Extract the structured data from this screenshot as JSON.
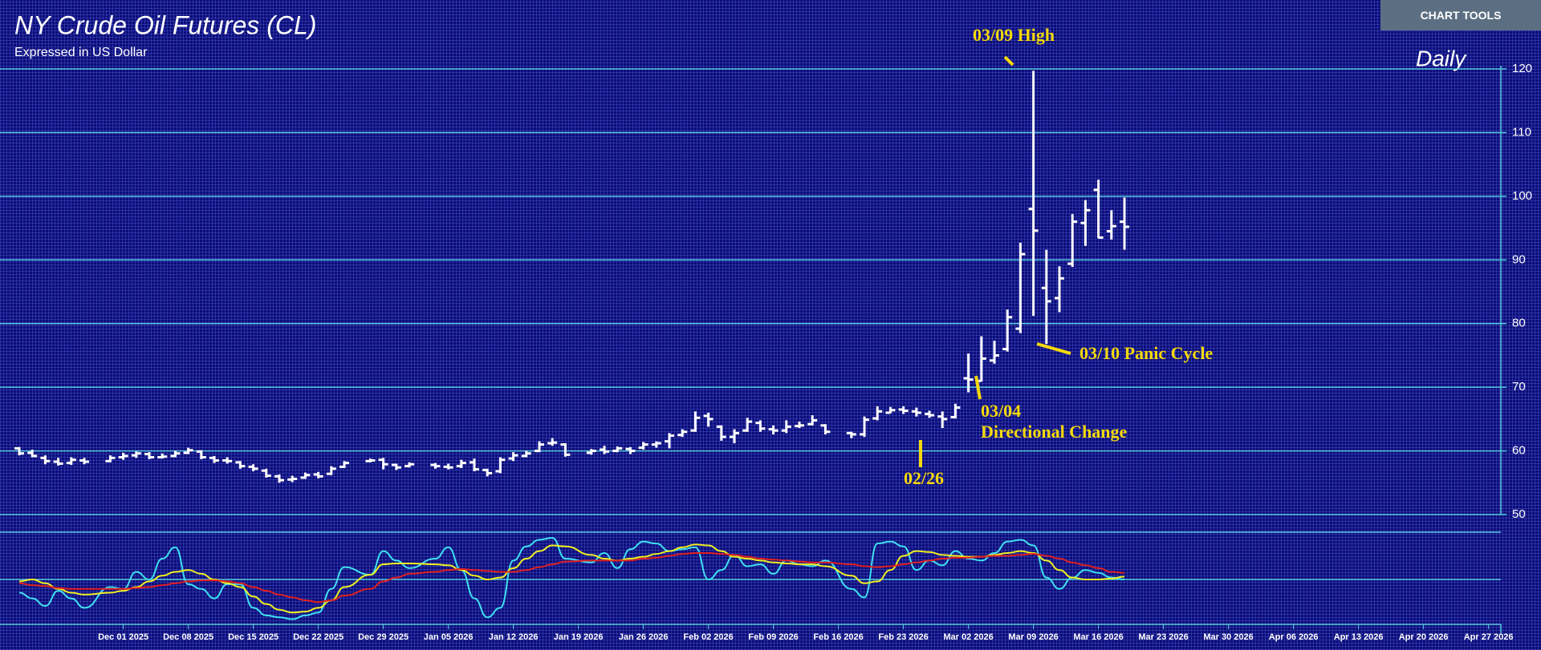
{
  "chart_data": {
    "type": "ohlc",
    "title": "NY Crude Oil Futures (CL)",
    "subtitle": "Expressed in US Dollar",
    "period": "Daily",
    "button": "CHART TOOLS",
    "color": "#ffffff",
    "grid_color": "#56c8dc",
    "grid": true,
    "ylim": [
      50,
      120
    ],
    "yticks": [
      50,
      60,
      70,
      80,
      90,
      100,
      110,
      120
    ],
    "xticks": [
      {
        "value": "2025-12-01",
        "label": "Dec 01 2025"
      },
      {
        "value": "2025-12-08",
        "label": "Dec 08 2025"
      },
      {
        "value": "2025-12-15",
        "label": "Dec 15 2025"
      },
      {
        "value": "2025-12-22",
        "label": "Dec 22 2025"
      },
      {
        "value": "2025-12-29",
        "label": "Dec 29 2025"
      },
      {
        "value": "2026-01-05",
        "label": "Jan 05 2026"
      },
      {
        "value": "2026-01-12",
        "label": "Jan 12 2026"
      },
      {
        "value": "2026-01-19",
        "label": "Jan 19 2026"
      },
      {
        "value": "2026-01-26",
        "label": "Jan 26 2026"
      },
      {
        "value": "2026-02-02",
        "label": "Feb 02 2026"
      },
      {
        "value": "2026-02-09",
        "label": "Feb 09 2026"
      },
      {
        "value": "2026-02-16",
        "label": "Feb 16 2026"
      },
      {
        "value": "2026-02-23",
        "label": "Feb 23 2026"
      },
      {
        "value": "2026-03-02",
        "label": "Mar 02 2026"
      },
      {
        "value": "2026-03-09",
        "label": "Mar 09 2026"
      },
      {
        "value": "2026-03-16",
        "label": "Mar 16 2026"
      },
      {
        "value": "2026-03-23",
        "label": "Mar 23 2026"
      },
      {
        "value": "2026-03-30",
        "label": "Mar 30 2026"
      },
      {
        "value": "2026-04-06",
        "label": "Apr 06 2026"
      },
      {
        "value": "2026-04-13",
        "label": "Apr 13 2026"
      },
      {
        "value": "2026-04-20",
        "label": "Apr 20 2026"
      },
      {
        "value": "2026-04-27",
        "label": "Apr 27 2026"
      }
    ],
    "x": [
      "2025-11-19",
      "2025-11-20",
      "2025-11-21",
      "2025-11-24",
      "2025-11-25",
      "2025-11-26",
      "2025-11-28",
      "2025-12-01",
      "2025-12-02",
      "2025-12-03",
      "2025-12-04",
      "2025-12-05",
      "2025-12-08",
      "2025-12-09",
      "2025-12-10",
      "2025-12-11",
      "2025-12-12",
      "2025-12-15",
      "2025-12-16",
      "2025-12-17",
      "2025-12-18",
      "2025-12-19",
      "2025-12-22",
      "2025-12-23",
      "2025-12-24",
      "2025-12-26",
      "2025-12-29",
      "2025-12-30",
      "2025-12-31",
      "2026-01-02",
      "2026-01-05",
      "2026-01-06",
      "2026-01-07",
      "2026-01-08",
      "2026-01-09",
      "2026-01-12",
      "2026-01-13",
      "2026-01-14",
      "2026-01-15",
      "2026-01-16",
      "2026-01-20",
      "2026-01-21",
      "2026-01-22",
      "2026-01-23",
      "2026-01-26",
      "2026-01-27",
      "2026-01-28",
      "2026-01-29",
      "2026-01-30",
      "2026-02-02",
      "2026-02-03",
      "2026-02-04",
      "2026-02-05",
      "2026-02-06",
      "2026-02-09",
      "2026-02-10",
      "2026-02-11",
      "2026-02-12",
      "2026-02-13",
      "2026-02-17",
      "2026-02-18",
      "2026-02-19",
      "2026-02-20",
      "2026-02-23",
      "2026-02-24",
      "2026-02-25",
      "2026-02-26",
      "2026-02-27",
      "2026-03-02",
      "2026-03-03",
      "2026-03-04",
      "2026-03-05",
      "2026-03-06",
      "2026-03-09",
      "2026-03-10",
      "2026-03-11",
      "2026-03-12",
      "2026-03-13",
      "2026-03-16",
      "2026-03-17",
      "2026-03-18"
    ],
    "ohlc": [
      [
        60.4,
        60.6,
        59.3,
        59.6
      ],
      [
        59.7,
        60.2,
        59.0,
        59.2
      ],
      [
        58.9,
        59.3,
        57.9,
        58.4
      ],
      [
        58.3,
        58.9,
        57.7,
        58.0
      ],
      [
        58.1,
        59.0,
        57.8,
        58.6
      ],
      [
        58.5,
        58.9,
        57.9,
        58.3
      ],
      [
        58.4,
        59.3,
        58.2,
        58.9
      ],
      [
        59.0,
        59.7,
        58.6,
        59.2
      ],
      [
        59.3,
        59.9,
        58.9,
        59.6
      ],
      [
        59.5,
        59.8,
        58.7,
        59.0
      ],
      [
        59.0,
        59.6,
        58.8,
        59.1
      ],
      [
        59.2,
        60.0,
        59.0,
        59.6
      ],
      [
        59.7,
        60.5,
        59.5,
        60.1
      ],
      [
        59.9,
        60.1,
        58.7,
        59.0
      ],
      [
        58.9,
        59.2,
        58.1,
        58.5
      ],
      [
        58.5,
        59.0,
        58.0,
        58.4
      ],
      [
        58.2,
        58.4,
        57.2,
        57.6
      ],
      [
        57.5,
        57.9,
        56.8,
        57.2
      ],
      [
        56.9,
        57.2,
        55.8,
        56.1
      ],
      [
        56.0,
        56.3,
        55.0,
        55.4
      ],
      [
        55.5,
        56.1,
        55.1,
        55.6
      ],
      [
        55.8,
        56.6,
        55.6,
        56.2
      ],
      [
        56.3,
        56.7,
        55.7,
        56.0
      ],
      [
        56.4,
        57.6,
        56.2,
        57.2
      ],
      [
        57.5,
        58.4,
        57.3,
        58.1
      ],
      [
        58.4,
        58.8,
        58.2,
        58.5
      ],
      [
        58.6,
        58.9,
        57.1,
        57.9
      ],
      [
        57.8,
        58.0,
        57.0,
        57.4
      ],
      [
        57.6,
        58.2,
        57.4,
        57.9
      ],
      [
        57.8,
        58.1,
        57.2,
        57.6
      ],
      [
        57.5,
        58.0,
        57.1,
        57.4
      ],
      [
        57.6,
        58.6,
        57.3,
        58.1
      ],
      [
        58.2,
        58.8,
        56.8,
        57.1
      ],
      [
        57.0,
        57.2,
        56.0,
        56.5
      ],
      [
        56.8,
        59.0,
        56.5,
        58.6
      ],
      [
        58.8,
        59.8,
        58.4,
        59.3
      ],
      [
        59.2,
        60.0,
        59.0,
        59.6
      ],
      [
        60.0,
        61.5,
        59.8,
        61.0
      ],
      [
        61.2,
        62.0,
        60.8,
        61.3
      ],
      [
        61.0,
        61.2,
        59.1,
        59.4
      ],
      [
        59.7,
        60.3,
        59.4,
        60.0
      ],
      [
        60.2,
        60.8,
        59.5,
        59.9
      ],
      [
        60.0,
        60.7,
        59.8,
        60.4
      ],
      [
        60.3,
        60.6,
        59.5,
        60.0
      ],
      [
        60.5,
        61.4,
        60.2,
        61.0
      ],
      [
        61.0,
        61.5,
        60.5,
        61.2
      ],
      [
        61.5,
        62.8,
        60.4,
        62.4
      ],
      [
        62.5,
        63.4,
        62.2,
        63.0
      ],
      [
        63.2,
        66.2,
        63.0,
        65.2
      ],
      [
        65.5,
        66.0,
        63.8,
        65.0
      ],
      [
        63.8,
        64.0,
        61.6,
        62.2
      ],
      [
        62.2,
        63.4,
        61.2,
        62.8
      ],
      [
        63.2,
        65.2,
        63.0,
        64.6
      ],
      [
        64.4,
        64.8,
        63.0,
        63.5
      ],
      [
        63.4,
        64.0,
        62.6,
        63.2
      ],
      [
        63.2,
        64.8,
        62.8,
        63.8
      ],
      [
        63.9,
        64.6,
        63.6,
        64.0
      ],
      [
        64.2,
        65.6,
        64.0,
        64.8
      ],
      [
        64.0,
        64.2,
        62.6,
        63.0
      ],
      [
        62.8,
        63.0,
        62.0,
        62.6
      ],
      [
        62.6,
        65.4,
        62.2,
        64.9
      ],
      [
        65.1,
        67.0,
        64.8,
        66.2
      ],
      [
        66.0,
        66.9,
        65.9,
        66.4
      ],
      [
        66.5,
        67.0,
        65.8,
        66.3
      ],
      [
        66.2,
        66.8,
        65.4,
        66.0
      ],
      [
        65.8,
        66.3,
        65.2,
        65.6
      ],
      [
        65.4,
        66.2,
        63.6,
        65.0
      ],
      [
        65.3,
        67.4,
        65.1,
        66.8
      ],
      [
        71.4,
        75.3,
        69.2,
        71.2
      ],
      [
        71.0,
        78.0,
        70.9,
        74.5
      ],
      [
        74.2,
        77.3,
        73.7,
        75.0
      ],
      [
        76.0,
        82.2,
        75.6,
        81.0
      ],
      [
        79.2,
        92.7,
        78.5,
        90.9
      ],
      [
        98.0,
        119.7,
        81.2,
        94.6
      ],
      [
        85.6,
        91.6,
        76.8,
        83.5
      ],
      [
        84.0,
        89.0,
        81.8,
        87.1
      ],
      [
        89.4,
        97.2,
        88.9,
        96.0
      ],
      [
        95.8,
        99.4,
        92.2,
        97.8
      ],
      [
        101.0,
        102.6,
        93.4,
        93.5
      ],
      [
        94.5,
        97.8,
        93.2,
        95.3
      ],
      [
        96.0,
        99.8,
        91.6,
        95.2
      ]
    ],
    "annotations": [
      "03/09 High",
      "03/10 Panic Cycle",
      "03/04",
      "Directional Change",
      "02/26"
    ],
    "annotation_color": "#f5d90a",
    "lower_panel": {
      "type": "line",
      "ylim": [
        0,
        100
      ],
      "series": [
        {
          "color": "#3fe0f0",
          "values": [
            36,
            30,
            22,
            38,
            30,
            20,
            42,
            40,
            58,
            50,
            72,
            84,
            45,
            40,
            30,
            45,
            45,
            20,
            12,
            10,
            8,
            12,
            15,
            40,
            63,
            55,
            80,
            70,
            62,
            72,
            84,
            60,
            30,
            10,
            20,
            70,
            85,
            92,
            94,
            72,
            68,
            78,
            62,
            82,
            90,
            88,
            80,
            82,
            84,
            50,
            60,
            76,
            64,
            66,
            56,
            70,
            66,
            64,
            70,
            40,
            31,
            88,
            90,
            85,
            60,
            70,
            65,
            80,
            72,
            70,
            78,
            90,
            92,
            86,
            52,
            40,
            52,
            60,
            57,
            52,
            50
          ]
        },
        {
          "color": "#f0f020",
          "values": [
            48,
            50,
            46,
            40,
            36,
            34,
            36,
            38,
            42,
            48,
            54,
            58,
            60,
            56,
            50,
            46,
            42,
            32,
            24,
            18,
            15,
            16,
            20,
            28,
            42,
            55,
            66,
            67,
            67,
            66,
            65,
            60,
            54,
            50,
            52,
            62,
            72,
            80,
            86,
            85,
            76,
            72,
            70,
            72,
            74,
            77,
            80,
            84,
            87,
            86,
            80,
            74,
            72,
            70,
            68,
            67,
            66,
            66,
            64,
            54,
            46,
            48,
            60,
            75,
            80,
            79,
            76,
            75,
            74,
            74,
            76,
            78,
            80,
            78,
            70,
            60,
            52,
            50,
            50,
            51,
            53
          ]
        },
        {
          "color": "#e02020",
          "values": [
            46,
            44,
            43,
            41,
            40,
            40,
            40,
            40,
            41,
            42,
            44,
            46,
            48,
            49,
            49,
            48,
            46,
            42,
            38,
            34,
            31,
            28,
            26,
            28,
            33,
            40,
            48,
            52,
            56,
            58,
            60,
            61,
            60,
            59,
            58,
            58,
            60,
            63,
            66,
            69,
            70,
            70,
            70,
            70,
            72,
            73,
            75,
            77,
            78,
            78,
            77,
            76,
            74,
            72,
            71,
            70,
            69,
            68,
            68,
            66,
            64,
            63,
            64,
            66,
            68,
            70,
            72,
            73,
            73,
            74,
            75,
            75,
            76,
            77,
            75,
            72,
            68,
            65,
            62,
            58,
            57
          ]
        }
      ]
    }
  }
}
